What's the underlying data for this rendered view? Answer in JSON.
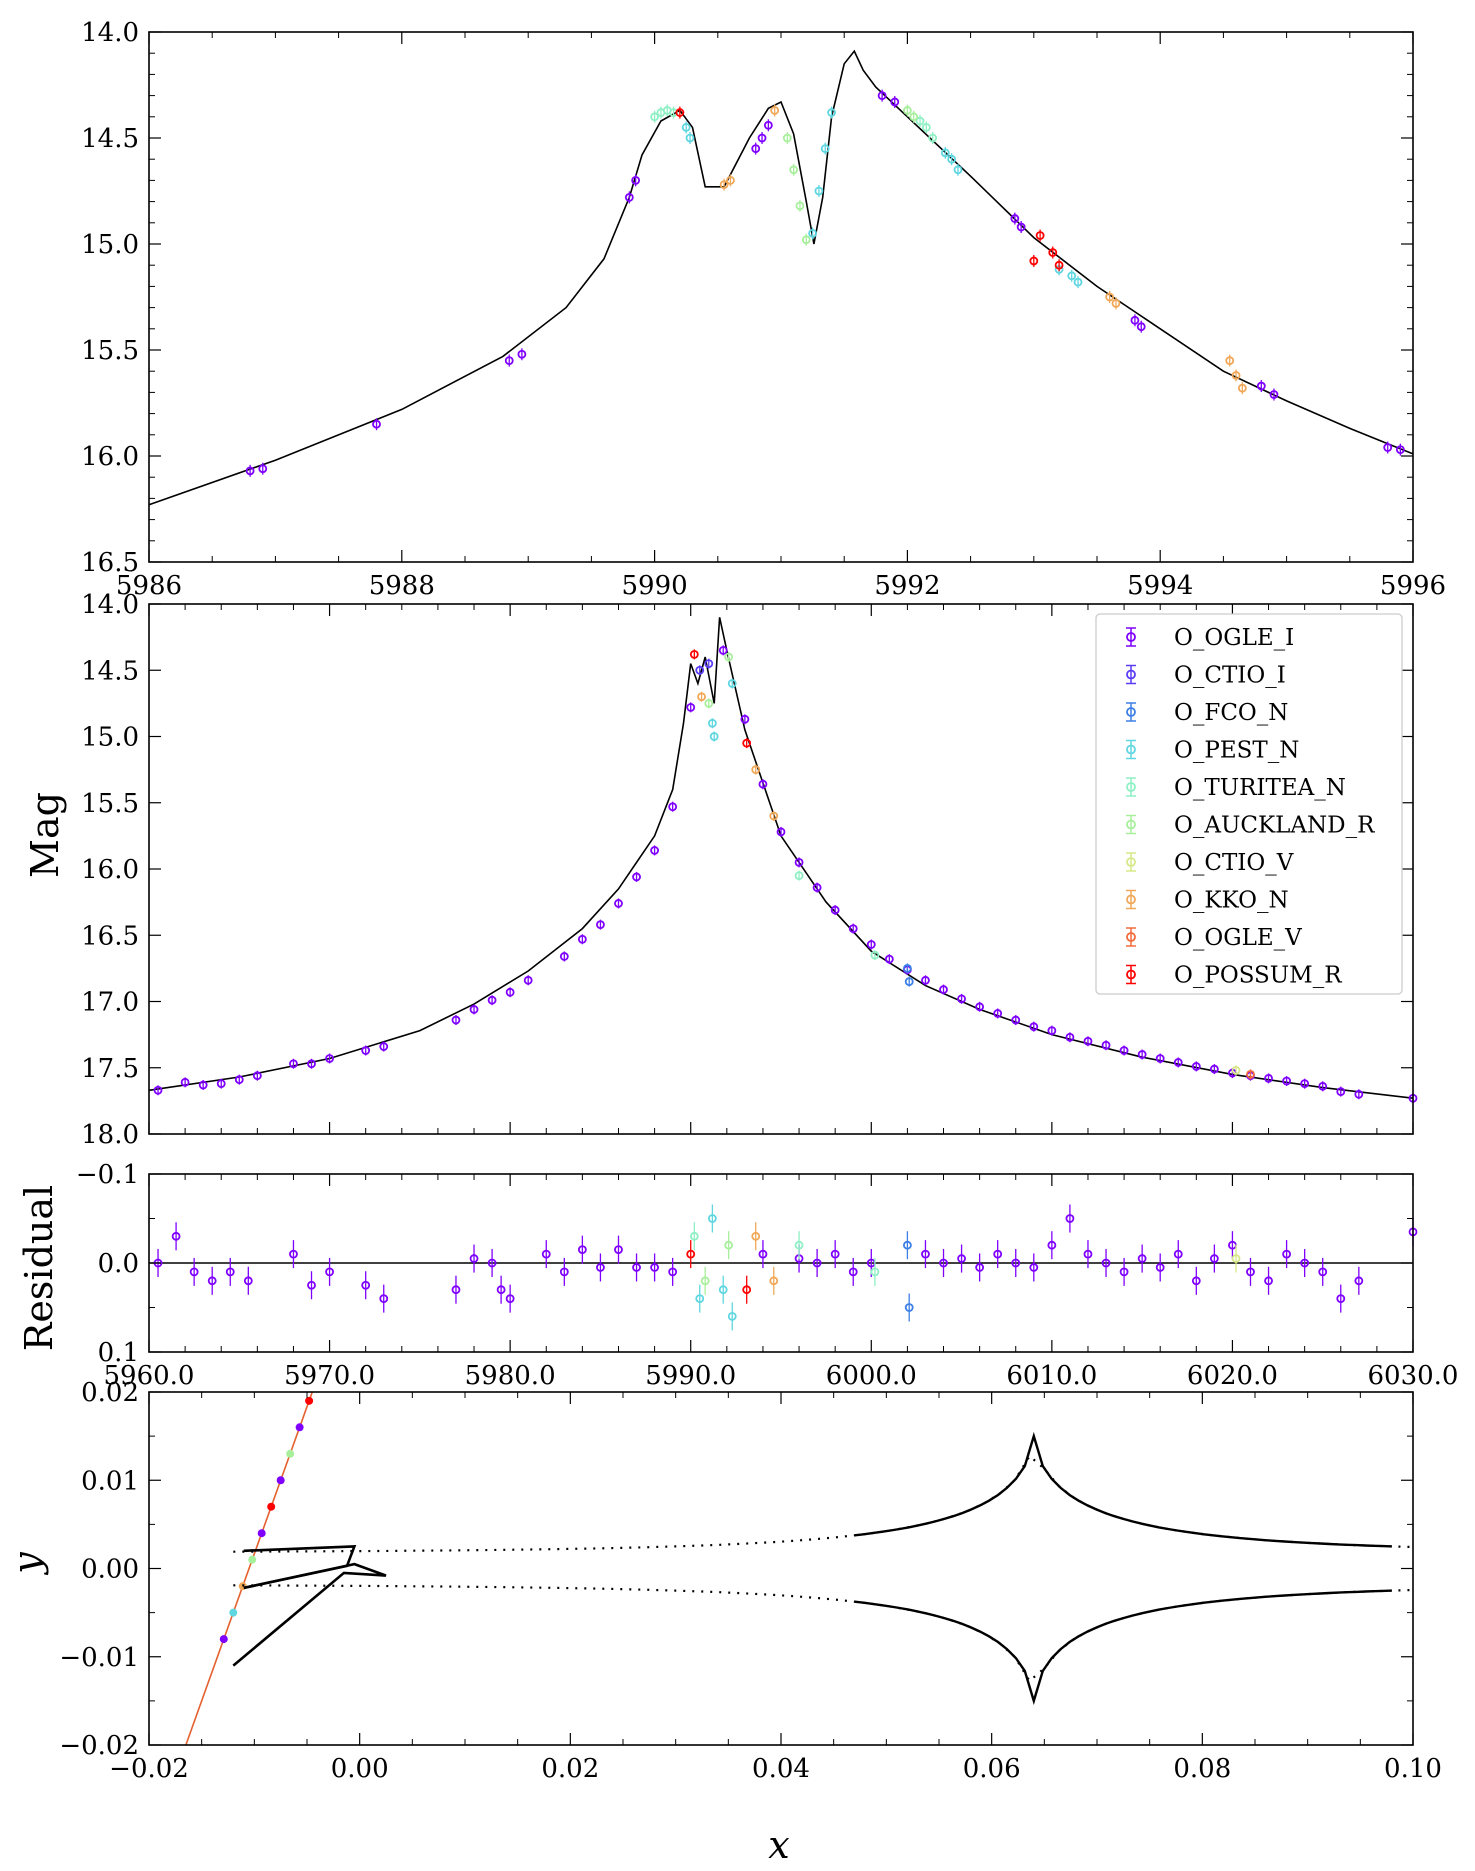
{
  "colors": {
    "O_OGLE_I": "#7f00ff",
    "O_CTIO_I": "#5a3cf5",
    "O_FCO_N": "#3c7fe6",
    "O_PEST_N": "#5fd6e0",
    "O_TURITEA_N": "#8ff0c4",
    "O_AUCKLAND_R": "#a8ef9c",
    "O_CTIO_V": "#d6e888",
    "O_KKO_N": "#f0a858",
    "O_OGLE_V": "#f26a3c",
    "O_POSSUM_R": "#ff0000"
  },
  "chart_data": [
    {
      "type": "scatter",
      "panel": "zoom",
      "title": "",
      "xlabel": "",
      "ylabel": "",
      "xlim": [
        5986,
        5996
      ],
      "ylim": [
        16.5,
        14.0
      ],
      "x_ticks": [
        "5986",
        "5988",
        "5990",
        "5992",
        "5994",
        "5996"
      ],
      "y_ticks": [
        "14.0",
        "14.5",
        "15.0",
        "15.5",
        "16.0",
        "16.5"
      ],
      "model": {
        "x": [
          5986.0,
          5987.0,
          5988.0,
          5988.8,
          5989.3,
          5989.6,
          5989.8,
          5989.9,
          5990.05,
          5990.2,
          5990.3,
          5990.4,
          5990.55,
          5990.75,
          5990.9,
          5991.0,
          5991.1,
          5991.2,
          5991.26,
          5991.33,
          5991.4,
          5991.5,
          5991.58,
          5991.65,
          5991.75,
          5992.0,
          5992.5,
          5993.0,
          5993.5,
          5994.0,
          5994.5,
          5995.0,
          5995.5,
          5996.0
        ],
        "y": [
          16.23,
          16.02,
          15.78,
          15.53,
          15.3,
          15.07,
          14.78,
          14.58,
          14.42,
          14.37,
          14.45,
          14.73,
          14.73,
          14.5,
          14.36,
          14.33,
          14.48,
          14.8,
          15.0,
          14.78,
          14.4,
          14.15,
          14.09,
          14.18,
          14.26,
          14.4,
          14.68,
          14.97,
          15.2,
          15.4,
          15.6,
          15.74,
          15.87,
          15.99
        ]
      },
      "series": [
        {
          "name": "O_OGLE_I",
          "x": [
            5986.8,
            5986.9,
            5987.8,
            5988.85,
            5988.95,
            5989.8,
            5989.85,
            5990.8,
            5990.85,
            5990.9,
            5991.8,
            5991.9,
            5992.85,
            5992.9,
            5993.8,
            5993.85,
            5994.8,
            5994.9,
            5995.8,
            5995.9
          ],
          "y": [
            16.07,
            16.06,
            15.85,
            15.55,
            15.52,
            14.78,
            14.7,
            14.55,
            14.5,
            14.44,
            14.3,
            14.33,
            14.88,
            14.92,
            15.36,
            15.39,
            15.67,
            15.71,
            15.96,
            15.97
          ]
        },
        {
          "name": "O_PEST_N",
          "x": [
            5990.25,
            5990.28,
            5991.25,
            5991.3,
            5991.35,
            5991.4,
            5992.3,
            5992.35,
            5992.4,
            5993.2,
            5993.3,
            5993.35
          ],
          "y": [
            14.45,
            14.5,
            14.95,
            14.75,
            14.55,
            14.38,
            14.57,
            14.6,
            14.65,
            15.12,
            15.15,
            15.18
          ]
        },
        {
          "name": "O_TURITEA_N",
          "x": [
            5990.0,
            5990.05,
            5990.1,
            5990.15,
            5992.1,
            5992.15,
            5992.2
          ],
          "y": [
            14.4,
            14.38,
            14.37,
            14.38,
            14.42,
            14.45,
            14.5
          ]
        },
        {
          "name": "O_AUCKLAND_R",
          "x": [
            5991.05,
            5991.1,
            5991.15,
            5991.2,
            5992.0,
            5992.05
          ],
          "y": [
            14.5,
            14.65,
            14.82,
            14.98,
            14.37,
            14.4
          ]
        },
        {
          "name": "O_KKO_N",
          "x": [
            5990.55,
            5990.6,
            5990.95,
            5993.6,
            5993.65,
            5994.55,
            5994.6,
            5994.65
          ],
          "y": [
            14.72,
            14.7,
            14.37,
            15.25,
            15.28,
            15.55,
            15.62,
            15.68
          ]
        },
        {
          "name": "O_POSSUM_R",
          "x": [
            5990.2,
            5993.0,
            5993.05,
            5993.15,
            5993.2
          ],
          "y": [
            14.38,
            15.08,
            14.96,
            15.04,
            15.1
          ]
        }
      ]
    },
    {
      "type": "scatter",
      "panel": "full",
      "title": "",
      "xlabel": "",
      "ylabel": "Mag",
      "xlim": [
        5960,
        6030
      ],
      "ylim": [
        18.0,
        14.0
      ],
      "y_ticks": [
        "14.0",
        "14.5",
        "15.0",
        "15.5",
        "16.0",
        "16.5",
        "17.0",
        "17.5",
        "18.0"
      ],
      "legend": {
        "placement": "top-right",
        "entries": [
          "O_OGLE_I",
          "O_CTIO_I",
          "O_FCO_N",
          "O_PEST_N",
          "O_TURITEA_N",
          "O_AUCKLAND_R",
          "O_CTIO_V",
          "O_KKO_N",
          "O_OGLE_V",
          "O_POSSUM_R"
        ]
      },
      "model": {
        "x": [
          5960,
          5965,
          5970,
          5975,
          5978,
          5981,
          5984,
          5986,
          5988,
          5989,
          5989.6,
          5990.0,
          5990.4,
          5990.8,
          5991.3,
          5991.6,
          5992.0,
          5993.0,
          5995.0,
          5997.5,
          6000.0,
          6003.0,
          6006.0,
          6010.0,
          6015.0,
          6020.0,
          6025.0,
          6030.0
        ],
        "y": [
          17.67,
          17.57,
          17.43,
          17.22,
          17.02,
          16.77,
          16.45,
          16.15,
          15.75,
          15.4,
          14.9,
          14.45,
          14.6,
          14.4,
          14.75,
          14.1,
          14.35,
          14.95,
          15.75,
          16.25,
          16.62,
          16.88,
          17.06,
          17.25,
          17.42,
          17.55,
          17.65,
          17.73
        ]
      },
      "series": [
        {
          "name": "O_OGLE_I",
          "x": [
            5960.5,
            5962,
            5963,
            5964,
            5965,
            5966,
            5968,
            5969,
            5970,
            5972,
            5973,
            5977,
            5978,
            5979,
            5980,
            5981,
            5983,
            5984,
            5985,
            5986,
            5987,
            5988,
            5989,
            5990,
            5991.8,
            5993,
            5994,
            5995,
            5996,
            5997,
            5998,
            5999,
            6000,
            6001,
            6002,
            6003,
            6004,
            6005,
            6006,
            6007,
            6008,
            6009,
            6010,
            6011,
            6012,
            6013,
            6014,
            6015,
            6016,
            6017,
            6018,
            6019,
            6020,
            6021,
            6022,
            6023,
            6024,
            6025,
            6026,
            6027,
            6030
          ],
          "y": [
            17.67,
            17.61,
            17.63,
            17.62,
            17.59,
            17.56,
            17.47,
            17.47,
            17.43,
            17.37,
            17.34,
            17.14,
            17.06,
            16.99,
            16.93,
            16.84,
            16.66,
            16.53,
            16.42,
            16.26,
            16.06,
            15.86,
            15.53,
            14.78,
            14.35,
            14.87,
            15.36,
            15.72,
            15.95,
            16.14,
            16.31,
            16.45,
            16.57,
            16.68,
            16.76,
            16.84,
            16.91,
            16.98,
            17.04,
            17.09,
            17.14,
            17.19,
            17.22,
            17.27,
            17.3,
            17.33,
            17.37,
            17.4,
            17.43,
            17.46,
            17.49,
            17.51,
            17.54,
            17.56,
            17.58,
            17.6,
            17.62,
            17.64,
            17.68,
            17.7,
            17.73
          ]
        },
        {
          "name": "O_CTIO_I",
          "x": [
            5990.5,
            5991.0
          ],
          "y": [
            14.5,
            14.45
          ]
        },
        {
          "name": "O_FCO_N",
          "x": [
            6002,
            6002.1
          ],
          "y": [
            16.75,
            16.85
          ]
        },
        {
          "name": "O_PEST_N",
          "x": [
            5991.2,
            5991.3,
            5992.3
          ],
          "y": [
            14.9,
            15.0,
            14.6
          ]
        },
        {
          "name": "O_TURITEA_N",
          "x": [
            5996,
            6000.2
          ],
          "y": [
            16.05,
            16.65
          ]
        },
        {
          "name": "O_AUCKLAND_R",
          "x": [
            5991.0,
            5992.1
          ],
          "y": [
            14.75,
            14.4
          ]
        },
        {
          "name": "O_CTIO_V",
          "x": [
            6020.2
          ],
          "y": [
            17.52
          ]
        },
        {
          "name": "O_KKO_N",
          "x": [
            5990.6,
            5993.6,
            5994.6
          ],
          "y": [
            14.7,
            15.25,
            15.6
          ]
        },
        {
          "name": "O_OGLE_V",
          "x": [
            6021
          ],
          "y": [
            17.55
          ]
        },
        {
          "name": "O_POSSUM_R",
          "x": [
            5990.2,
            5993.1
          ],
          "y": [
            14.38,
            15.05
          ]
        }
      ]
    },
    {
      "type": "scatter",
      "panel": "residual",
      "title": "",
      "xlabel": "",
      "ylabel": "Residual",
      "xlim": [
        5960,
        6030
      ],
      "ylim": [
        0.1,
        -0.1
      ],
      "x_ticks": [
        "5960.0",
        "5970.0",
        "5980.0",
        "5990.0",
        "6000.0",
        "6010.0",
        "6020.0",
        "6030.0"
      ],
      "y_ticks": [
        "−0.1",
        "0.0",
        "0.1"
      ],
      "series": [
        {
          "name": "O_OGLE_I",
          "x": [
            5960.5,
            5961.5,
            5962.5,
            5963.5,
            5964.5,
            5965.5,
            5968,
            5969,
            5970,
            5972,
            5973,
            5977,
            5978,
            5979,
            5979.5,
            5980,
            5982,
            5983,
            5984,
            5985,
            5986,
            5987,
            5988,
            5989,
            5994,
            5996,
            5997,
            5998,
            5999,
            6000,
            6003,
            6004,
            6005,
            6006,
            6007,
            6008,
            6009,
            6010,
            6011,
            6012,
            6013,
            6014,
            6015,
            6016,
            6017,
            6018,
            6019,
            6020,
            6021,
            6022,
            6023,
            6024,
            6025,
            6026,
            6027,
            6030
          ],
          "y": [
            0.0,
            -0.03,
            0.01,
            0.02,
            0.01,
            0.02,
            -0.01,
            0.025,
            0.01,
            0.025,
            0.04,
            0.03,
            -0.005,
            0.0,
            0.03,
            0.04,
            -0.01,
            0.01,
            -0.015,
            0.005,
            -0.015,
            0.005,
            0.005,
            0.01,
            -0.01,
            -0.005,
            0.0,
            -0.01,
            0.01,
            0.0,
            -0.01,
            0.0,
            -0.005,
            0.005,
            -0.01,
            0.0,
            0.005,
            -0.02,
            -0.05,
            -0.01,
            0.0,
            0.01,
            -0.005,
            0.005,
            -0.01,
            0.02,
            -0.005,
            -0.02,
            0.01,
            0.02,
            -0.01,
            0.0,
            0.01,
            0.04,
            0.02,
            -0.035
          ]
        },
        {
          "name": "O_FCO_N",
          "x": [
            6002,
            6002.1
          ],
          "y": [
            -0.02,
            0.05
          ]
        },
        {
          "name": "O_PEST_N",
          "x": [
            5990.5,
            5991.2,
            5991.8,
            5992.3
          ],
          "y": [
            0.04,
            -0.05,
            0.03,
            0.06
          ]
        },
        {
          "name": "O_TURITEA_N",
          "x": [
            5990.2,
            5996,
            6000.2
          ],
          "y": [
            -0.03,
            -0.02,
            0.01
          ]
        },
        {
          "name": "O_AUCKLAND_R",
          "x": [
            5990.8,
            5992.1
          ],
          "y": [
            0.02,
            -0.02
          ]
        },
        {
          "name": "O_CTIO_V",
          "x": [
            6020.2
          ],
          "y": [
            -0.005
          ]
        },
        {
          "name": "O_KKO_N",
          "x": [
            5993.6,
            5994.6
          ],
          "y": [
            -0.03,
            0.02
          ]
        },
        {
          "name": "O_POSSUM_R",
          "x": [
            5990.0,
            5993.1
          ],
          "y": [
            -0.01,
            0.03
          ]
        }
      ]
    },
    {
      "type": "line",
      "panel": "geometry",
      "title": "",
      "xlabel": "x",
      "ylabel": "y",
      "xlim": [
        -0.02,
        0.1
      ],
      "ylim": [
        -0.02,
        0.02
      ],
      "x_ticks": [
        "−0.02",
        "0.00",
        "0.02",
        "0.04",
        "0.06",
        "0.08",
        "0.10"
      ],
      "y_ticks": [
        "−0.02",
        "−0.01",
        "0.00",
        "0.01",
        "0.02"
      ],
      "source_trajectory": {
        "x": [
          -0.0165,
          -0.0045
        ],
        "y": [
          -0.02,
          0.02
        ]
      },
      "caustic_cusp_x": 0.064,
      "caustic_cusp_y": 0.015
    }
  ]
}
